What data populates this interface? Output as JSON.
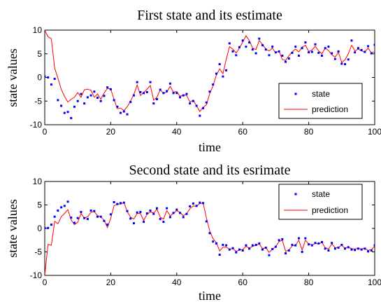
{
  "chart_data": [
    {
      "type": "line",
      "title": "First state and its estimate",
      "xlabel": "time",
      "ylabel": "state values",
      "xlim": [
        0,
        100
      ],
      "ylim": [
        -10,
        10
      ],
      "xticks": [
        0,
        20,
        40,
        60,
        80,
        100
      ],
      "yticks": [
        -10,
        -5,
        0,
        5,
        10
      ],
      "legend_position": "lower-right",
      "series": [
        {
          "name": "state",
          "style": "dots",
          "color": "#0000ff",
          "x": [
            0,
            1,
            2,
            3,
            4,
            5,
            6,
            7,
            8,
            9,
            10,
            11,
            12,
            13,
            14,
            15,
            16,
            17,
            18,
            19,
            20,
            21,
            22,
            23,
            24,
            25,
            26,
            27,
            28,
            29,
            30,
            31,
            32,
            33,
            34,
            35,
            36,
            37,
            38,
            39,
            40,
            41,
            42,
            43,
            44,
            45,
            46,
            47,
            48,
            49,
            50,
            51,
            52,
            53,
            54,
            55,
            56,
            57,
            58,
            59,
            60,
            61,
            62,
            63,
            64,
            65,
            66,
            67,
            68,
            69,
            70,
            71,
            72,
            73,
            74,
            75,
            76,
            77,
            78,
            79,
            80,
            81,
            82,
            83,
            84,
            85,
            86,
            87,
            88,
            89,
            90,
            91,
            92,
            93,
            94,
            95,
            96,
            97,
            98,
            99,
            100
          ],
          "y": [
            0.2,
            0,
            -1.5,
            -0.3,
            -4.8,
            -6,
            -7.5,
            -7.3,
            -8.6,
            -6.2,
            -5,
            -3.5,
            -5.5,
            -4.2,
            -3.8,
            -3,
            -4.3,
            -5,
            -3.9,
            -2.1,
            -2.5,
            -4.8,
            -6.2,
            -7.5,
            -7.2,
            -7.8,
            -5.2,
            -3.8,
            -1,
            -3.1,
            -3.3,
            -3.1,
            -1,
            -5.5,
            -4.6,
            -2.6,
            -3.3,
            -2.9,
            -1.3,
            -3.3,
            -3.3,
            -4.2,
            -3.8,
            -3.5,
            -5.5,
            -5,
            -6,
            -8.1,
            -6.5,
            -5.3,
            -3,
            -1.5,
            0.8,
            2.8,
            0.2,
            1.5,
            7.2,
            5.5,
            4.7,
            6.4,
            7.8,
            6.5,
            7.4,
            5.9,
            5.1,
            8.2,
            6.8,
            5.9,
            4.7,
            6.5,
            5.3,
            5.5,
            4.6,
            3.3,
            4,
            5.2,
            6.5,
            4.6,
            6.2,
            7.4,
            5.3,
            5.4,
            7,
            5.2,
            4.6,
            6.2,
            6.5,
            5.1,
            3.9,
            5.5,
            2.9,
            2.8,
            3.8,
            7.8,
            5.3,
            6.2,
            5.8,
            5.4,
            6.6,
            5.1,
            6.9
          ]
        },
        {
          "name": "prediction",
          "style": "line",
          "color": "#ff0000",
          "x": [
            0,
            1,
            2,
            3,
            4,
            5,
            6,
            7,
            8,
            9,
            10,
            11,
            12,
            13,
            14,
            15,
            16,
            17,
            18,
            19,
            20,
            21,
            22,
            23,
            24,
            25,
            26,
            27,
            28,
            29,
            30,
            31,
            32,
            33,
            34,
            35,
            36,
            37,
            38,
            39,
            40,
            41,
            42,
            43,
            44,
            45,
            46,
            47,
            48,
            49,
            50,
            51,
            52,
            53,
            54,
            55,
            56,
            57,
            58,
            59,
            60,
            61,
            62,
            63,
            64,
            65,
            66,
            67,
            68,
            69,
            70,
            71,
            72,
            73,
            74,
            75,
            76,
            77,
            78,
            79,
            80,
            81,
            82,
            83,
            84,
            85,
            86,
            87,
            88,
            89,
            90,
            91,
            92,
            93,
            94,
            95,
            96,
            97,
            98,
            99,
            100
          ],
          "y": [
            10,
            8.6,
            8.2,
            2,
            -0.2,
            -2.5,
            -4,
            -5.2,
            -4.6,
            -4.2,
            -3.2,
            -4.2,
            -2.6,
            -2.5,
            -2.7,
            -4.2,
            -3.5,
            -4.6,
            -3.3,
            -2.3,
            -2.5,
            -4.6,
            -6.6,
            -6.5,
            -7,
            -6.2,
            -5,
            -3.6,
            -1.6,
            -3.8,
            -3.2,
            -2.5,
            -1.7,
            -4.8,
            -4.2,
            -2.6,
            -3.4,
            -3.1,
            -1.9,
            -3.1,
            -3,
            -4,
            -3.7,
            -3.8,
            -5.2,
            -4.8,
            -6,
            -7.2,
            -6.3,
            -5.8,
            -3.4,
            -1.8,
            0.5,
            1.8,
            0.8,
            3.8,
            6.5,
            6,
            5.2,
            6.2,
            7.5,
            8.8,
            7.8,
            6.2,
            5.9,
            7.8,
            7,
            6,
            5.6,
            6.2,
            5.2,
            5.6,
            3.8,
            3.6,
            4.6,
            5.4,
            6,
            5.4,
            6.4,
            6.8,
            5.5,
            5.8,
            6.6,
            5.6,
            5,
            6.2,
            5.7,
            4.8,
            4.3,
            5.3,
            3.2,
            3.7,
            5,
            6.8,
            5.6,
            6,
            5.6,
            5.4,
            6.2,
            5.2,
            5.4
          ]
        }
      ]
    },
    {
      "type": "line",
      "title": "Second state and its esrimate",
      "xlabel": "time",
      "ylabel": "state values",
      "xlim": [
        0,
        100
      ],
      "ylim": [
        -10,
        10
      ],
      "xticks": [
        0,
        20,
        40,
        60,
        80,
        100
      ],
      "yticks": [
        -10,
        -5,
        0,
        5,
        10
      ],
      "legend_position": "upper-right",
      "series": [
        {
          "name": "state",
          "style": "dots",
          "color": "#0000ff",
          "x": [
            0,
            1,
            2,
            3,
            4,
            5,
            6,
            7,
            8,
            9,
            10,
            11,
            12,
            13,
            14,
            15,
            16,
            17,
            18,
            19,
            20,
            21,
            22,
            23,
            24,
            25,
            26,
            27,
            28,
            29,
            30,
            31,
            32,
            33,
            34,
            35,
            36,
            37,
            38,
            39,
            40,
            41,
            42,
            43,
            44,
            45,
            46,
            47,
            48,
            49,
            50,
            51,
            52,
            53,
            54,
            55,
            56,
            57,
            58,
            59,
            60,
            61,
            62,
            63,
            64,
            65,
            66,
            67,
            68,
            69,
            70,
            71,
            72,
            73,
            74,
            75,
            76,
            77,
            78,
            79,
            80,
            81,
            82,
            83,
            84,
            85,
            86,
            87,
            88,
            89,
            90,
            91,
            92,
            93,
            94,
            95,
            96,
            97,
            98,
            99,
            100
          ],
          "y": [
            0.1,
            0.1,
            0.8,
            2.5,
            3.8,
            4.5,
            4.8,
            5.7,
            2.3,
            1.2,
            2.2,
            3.5,
            2.2,
            2,
            3.8,
            3.7,
            2.5,
            2.5,
            1.6,
            0.8,
            3,
            5.6,
            5.2,
            5.4,
            5.5,
            3.7,
            2.1,
            1.1,
            3.4,
            3.5,
            1.4,
            3.2,
            3.8,
            3.1,
            4.3,
            2,
            1.4,
            4.3,
            2.4,
            3.3,
            4,
            3.3,
            2.4,
            3.1,
            4.7,
            5.3,
            4.8,
            5.5,
            5.4,
            1.5,
            -1,
            -2.8,
            -3.2,
            -5.6,
            -3.5,
            -3.6,
            -4.5,
            -4.2,
            -5.1,
            -4.5,
            -4.7,
            -3.6,
            -4.3,
            -3.6,
            -3.5,
            -3.2,
            -4.5,
            -4.1,
            -5.7,
            -4.4,
            -3.9,
            -2.5,
            -2.3,
            -5.3,
            -4.7,
            -3.5,
            -3.6,
            -2.1,
            -5,
            -2.1,
            -3.4,
            -3.6,
            -3.1,
            -3.2,
            -2.9,
            -4.3,
            -4.7,
            -3.1,
            -4.3,
            -4.1,
            -3.5,
            -4.3,
            -4,
            -4.5,
            -4.6,
            -4.3,
            -4.5,
            -4.3,
            -4.9,
            -4.7,
            -3.6
          ]
        },
        {
          "name": "prediction",
          "style": "line",
          "color": "#ff0000",
          "x": [
            0,
            1,
            2,
            3,
            4,
            5,
            6,
            7,
            8,
            9,
            10,
            11,
            12,
            13,
            14,
            15,
            16,
            17,
            18,
            19,
            20,
            21,
            22,
            23,
            24,
            25,
            26,
            27,
            28,
            29,
            30,
            31,
            32,
            33,
            34,
            35,
            36,
            37,
            38,
            39,
            40,
            41,
            42,
            43,
            44,
            45,
            46,
            47,
            48,
            49,
            50,
            51,
            52,
            53,
            54,
            55,
            56,
            57,
            58,
            59,
            60,
            61,
            62,
            63,
            64,
            65,
            66,
            67,
            68,
            69,
            70,
            71,
            72,
            73,
            74,
            75,
            76,
            77,
            78,
            79,
            80,
            81,
            82,
            83,
            84,
            85,
            86,
            87,
            88,
            89,
            90,
            91,
            92,
            93,
            94,
            95,
            96,
            97,
            98,
            99,
            100
          ],
          "y": [
            -10,
            -3.4,
            -3.6,
            1.5,
            1,
            2.5,
            3.2,
            4,
            1.8,
            0.8,
            1.3,
            3.2,
            2.2,
            2.5,
            3.4,
            3.6,
            2.7,
            2.5,
            1.7,
            0.2,
            2.2,
            4.8,
            5.2,
            5.2,
            5.5,
            3.6,
            2.4,
            2,
            3.2,
            3.2,
            1.7,
            3,
            3.5,
            3.3,
            4.1,
            2.4,
            2,
            3.8,
            2.7,
            3.2,
            3.8,
            3.4,
            2.7,
            3.2,
            4.2,
            4.8,
            4.7,
            5.3,
            5.4,
            2.2,
            -0.5,
            -2.2,
            -3,
            -4.8,
            -4,
            -4,
            -4.4,
            -4.3,
            -4.9,
            -4.6,
            -4.5,
            -3.8,
            -4.2,
            -3.8,
            -3.6,
            -3.3,
            -4.3,
            -4.1,
            -5.1,
            -4.4,
            -3.9,
            -2.8,
            -2.5,
            -4.9,
            -4.6,
            -3.7,
            -3.6,
            -2.5,
            -4.6,
            -2.5,
            -3.3,
            -3.5,
            -3.2,
            -3.3,
            -3,
            -4.1,
            -4.4,
            -3.3,
            -4.1,
            -4,
            -3.6,
            -4.2,
            -4,
            -4.3,
            -4.4,
            -4.2,
            -4.4,
            -4.2,
            -4.7,
            -4.5,
            -3.8
          ]
        }
      ]
    }
  ]
}
